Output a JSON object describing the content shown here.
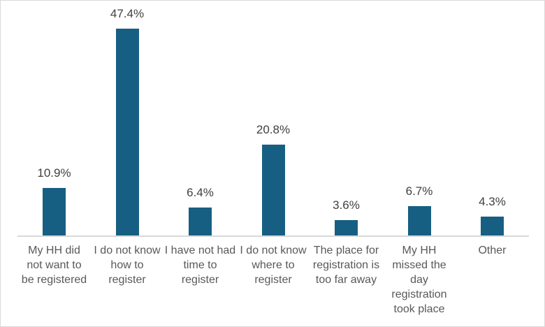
{
  "chart_data": {
    "type": "bar",
    "title": "",
    "xlabel": "",
    "ylabel": "",
    "categories": [
      "My HH did not want to be registered",
      "I do not know how to register",
      "I have not had time to register",
      "I do not know where to register",
      "The place for registration is too far away",
      "My HH missed the day registration took place",
      "Other"
    ],
    "category_lines": [
      [
        "My HH did",
        "not want to",
        "be registered"
      ],
      [
        "I do not know",
        "how to",
        "register"
      ],
      [
        "I have not had",
        "time to",
        "register"
      ],
      [
        "I do not know",
        "where to",
        "register"
      ],
      [
        "The place for",
        "registration is",
        "too far away"
      ],
      [
        "My HH",
        "missed the",
        "day",
        "registration",
        "took place"
      ],
      [
        "Other"
      ]
    ],
    "values": [
      10.9,
      47.4,
      6.4,
      20.8,
      3.6,
      6.7,
      4.3
    ],
    "value_labels": [
      "10.9%",
      "47.4%",
      "6.4%",
      "20.8%",
      "3.6%",
      "6.7%",
      "4.3%"
    ],
    "ylim": [
      0,
      50
    ],
    "grid": false,
    "legend": null,
    "bar_color": "#175f82"
  }
}
